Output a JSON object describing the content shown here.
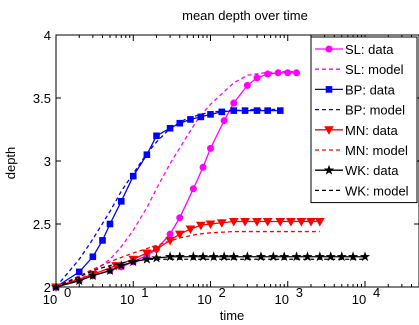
{
  "chart_data": {
    "type": "line",
    "title": "mean depth over time",
    "xlabel": "time",
    "ylabel": "depth",
    "xscale": "log",
    "xlim": [
      1,
      50000
    ],
    "ylim": [
      2,
      4
    ],
    "x_ticks": [
      1,
      10,
      100,
      1000,
      10000
    ],
    "x_tick_labels": [
      {
        "base": "10",
        "exp": "0"
      },
      {
        "base": "10",
        "exp": "1"
      },
      {
        "base": "10",
        "exp": "2"
      },
      {
        "base": "10",
        "exp": "3"
      },
      {
        "base": "10",
        "exp": "4"
      }
    ],
    "y_ticks": [
      2,
      2.5,
      3,
      3.5,
      4
    ],
    "y_tick_labels": [
      "2",
      "2.5",
      "3",
      "3.5",
      "4"
    ],
    "grid": false,
    "legend_position": "top-right",
    "series": [
      {
        "name": "SL: data",
        "color": "#ff00ff",
        "style": "solid",
        "marker": "circle",
        "x": [
          1,
          2,
          3,
          5,
          7,
          10,
          15,
          20,
          30,
          40,
          60,
          80,
          100,
          150,
          200,
          300,
          400,
          550,
          750,
          1000,
          1300
        ],
        "y": [
          2.0,
          2.05,
          2.09,
          2.13,
          2.16,
          2.2,
          2.25,
          2.3,
          2.42,
          2.55,
          2.78,
          2.95,
          3.1,
          3.32,
          3.46,
          3.6,
          3.66,
          3.69,
          3.7,
          3.7,
          3.7
        ]
      },
      {
        "name": "SL: model",
        "color": "#ff00ff",
        "style": "dashed",
        "marker": "none",
        "x": [
          1,
          2,
          3,
          5,
          7,
          10,
          15,
          20,
          30,
          50,
          70,
          100,
          150,
          200,
          300,
          500,
          800,
          1300
        ],
        "y": [
          2.0,
          2.06,
          2.12,
          2.22,
          2.32,
          2.45,
          2.63,
          2.78,
          2.98,
          3.2,
          3.34,
          3.45,
          3.55,
          3.62,
          3.68,
          3.7,
          3.71,
          3.71
        ]
      },
      {
        "name": "BP: data",
        "color": "#0000ff",
        "style": "solid",
        "marker": "square",
        "x": [
          1,
          2,
          3,
          4,
          5,
          7,
          10,
          15,
          20,
          30,
          40,
          55,
          75,
          100,
          140,
          200,
          280,
          400,
          550,
          800
        ],
        "y": [
          2.0,
          2.12,
          2.24,
          2.37,
          2.5,
          2.68,
          2.88,
          3.05,
          3.2,
          3.26,
          3.3,
          3.33,
          3.35,
          3.37,
          3.39,
          3.4,
          3.4,
          3.4,
          3.4,
          3.4
        ]
      },
      {
        "name": "BP: model",
        "color": "#0000ff",
        "style": "dashed",
        "marker": "none",
        "x": [
          1,
          2,
          3,
          5,
          7,
          10,
          15,
          20,
          30,
          50,
          100,
          200,
          400,
          800
        ],
        "y": [
          2.0,
          2.22,
          2.38,
          2.6,
          2.76,
          2.9,
          3.06,
          3.15,
          3.26,
          3.34,
          3.39,
          3.4,
          3.41,
          3.41
        ]
      },
      {
        "name": "MN: data",
        "color": "#ff0000",
        "style": "solid",
        "marker": "triangle-down",
        "x": [
          1,
          3,
          6,
          10,
          15,
          20,
          30,
          40,
          55,
          75,
          100,
          140,
          200,
          280,
          400,
          550,
          800,
          1100,
          1500,
          2000,
          2600
        ],
        "y": [
          2.0,
          2.1,
          2.17,
          2.22,
          2.27,
          2.3,
          2.37,
          2.42,
          2.46,
          2.49,
          2.5,
          2.51,
          2.52,
          2.52,
          2.52,
          2.52,
          2.52,
          2.52,
          2.52,
          2.52,
          2.52
        ]
      },
      {
        "name": "MN: model",
        "color": "#ff0000",
        "style": "dashed",
        "marker": "none",
        "x": [
          1,
          3,
          6,
          10,
          20,
          40,
          70,
          100,
          200,
          400,
          800,
          1500,
          2600
        ],
        "y": [
          2.0,
          2.14,
          2.22,
          2.27,
          2.33,
          2.39,
          2.42,
          2.43,
          2.44,
          2.44,
          2.44,
          2.44,
          2.44
        ]
      },
      {
        "name": "WK: data",
        "color": "#000000",
        "style": "solid",
        "marker": "star",
        "x": [
          1,
          2,
          3,
          5,
          7,
          10,
          15,
          20,
          30,
          40,
          60,
          80,
          110,
          150,
          200,
          300,
          450,
          650,
          900,
          1300,
          1800,
          2600,
          3600,
          5000,
          7000,
          10000
        ],
        "y": [
          2.0,
          2.05,
          2.09,
          2.13,
          2.17,
          2.2,
          2.22,
          2.23,
          2.24,
          2.24,
          2.24,
          2.24,
          2.24,
          2.24,
          2.24,
          2.24,
          2.24,
          2.24,
          2.24,
          2.24,
          2.24,
          2.24,
          2.24,
          2.24,
          2.24,
          2.24
        ]
      },
      {
        "name": "WK: model",
        "color": "#000000",
        "style": "dashed",
        "marker": "none",
        "x": [
          1,
          2,
          3,
          5,
          7,
          10,
          15,
          20,
          30,
          50,
          100,
          300,
          1000,
          3000,
          10000
        ],
        "y": [
          2.0,
          2.08,
          2.13,
          2.17,
          2.19,
          2.21,
          2.22,
          2.22,
          2.22,
          2.22,
          2.22,
          2.22,
          2.22,
          2.22,
          2.22
        ]
      }
    ]
  }
}
